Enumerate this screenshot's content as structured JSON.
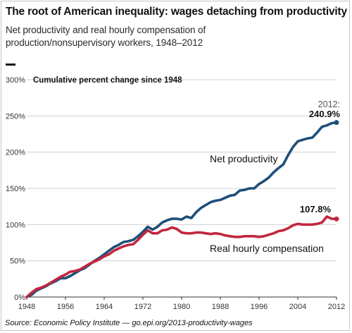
{
  "header": {
    "title": "The root of American inequality: wages detaching from productivity",
    "subtitle": "Net productivity and real hourly compensation of production/nonsupervisory workers, 1948–2012"
  },
  "source": "Source: Economic Policy Institute — go.epi.org/2013-productivity-wages",
  "chart_data": {
    "type": "line",
    "ylabel": "Cumulative percent change since 1948",
    "ylim": [
      0,
      300
    ],
    "yticks": [
      0,
      50,
      100,
      150,
      200,
      250,
      300
    ],
    "ytick_labels": [
      "0%",
      "50%",
      "100%",
      "150%",
      "200%",
      "250%",
      "300%"
    ],
    "xlim": [
      1948,
      2012
    ],
    "xticks": [
      1948,
      1956,
      1964,
      1972,
      1980,
      1988,
      1996,
      2004,
      2012
    ],
    "xtick_labels": [
      "1948",
      "1956",
      "1964",
      "1972",
      "1980",
      "1988",
      "1996",
      "2004",
      "2012"
    ],
    "grid": "horizontal",
    "x": [
      1948,
      1949,
      1950,
      1951,
      1952,
      1953,
      1954,
      1955,
      1956,
      1957,
      1958,
      1959,
      1960,
      1961,
      1962,
      1963,
      1964,
      1965,
      1966,
      1967,
      1968,
      1969,
      1970,
      1971,
      1972,
      1973,
      1974,
      1975,
      1976,
      1977,
      1978,
      1979,
      1980,
      1981,
      1982,
      1983,
      1984,
      1985,
      1986,
      1987,
      1988,
      1989,
      1990,
      1991,
      1992,
      1993,
      1994,
      1995,
      1996,
      1997,
      1998,
      1999,
      2000,
      2001,
      2002,
      2003,
      2004,
      2005,
      2006,
      2007,
      2008,
      2009,
      2010,
      2011,
      2012
    ],
    "series": [
      {
        "name": "Net productivity",
        "color": "#1f4e79",
        "label_text": "Net productivity",
        "end_label_year": "2012:",
        "end_label_value": "240.9%",
        "values": [
          0,
          3,
          9,
          12,
          15,
          19,
          22,
          26,
          26,
          29,
          33,
          37,
          40,
          45,
          50,
          54,
          59,
          64,
          69,
          72,
          76,
          77,
          79,
          84,
          90,
          97,
          93,
          97,
          103,
          106,
          108,
          108,
          107,
          111,
          109,
          117,
          123,
          127,
          131,
          133,
          134,
          137,
          140,
          141,
          147,
          148,
          150,
          150,
          156,
          160,
          165,
          172,
          178,
          183,
          196,
          207,
          215,
          217,
          219,
          220,
          227,
          235,
          237,
          240,
          240.9
        ]
      },
      {
        "name": "Real hourly compensation",
        "color": "#c0273e",
        "label_text": "Real hourly compensation",
        "end_label_value": "107.8%",
        "values": [
          0,
          6,
          11,
          13,
          16,
          20,
          24,
          28,
          31,
          35,
          36,
          38,
          42,
          46,
          49,
          52,
          56,
          59,
          64,
          67,
          70,
          72,
          73,
          79,
          86,
          92,
          88,
          88,
          92,
          93,
          96,
          94,
          89,
          88,
          88,
          89,
          89,
          88,
          87,
          88,
          87,
          85,
          84,
          83,
          83,
          84,
          84,
          84,
          83,
          84,
          86,
          88,
          91,
          92,
          95,
          99,
          101,
          100,
          100,
          100,
          101,
          103,
          111,
          108,
          107.8
        ]
      }
    ]
  }
}
